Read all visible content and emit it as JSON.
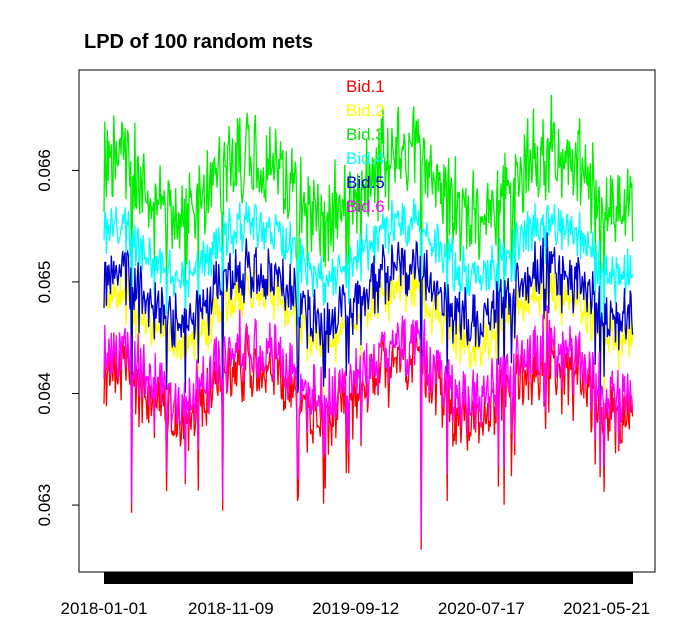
{
  "chart_data": {
    "type": "line",
    "title": "LPD of  100  random nets",
    "xlabel": "",
    "ylabel": "",
    "x_tick_labels": [
      "2018-01-01",
      "2018-11-09",
      "2019-09-12",
      "2020-07-17",
      "2021-05-21"
    ],
    "x_range": [
      "2018-01-01",
      "2021-07-25"
    ],
    "y_ticks": [
      "0.063",
      "0.064",
      "0.065",
      "0.066"
    ],
    "ylim": [
      0.0624,
      0.0669
    ],
    "legend_position": "top-center",
    "grid": false,
    "series": [
      {
        "name": "Bid.1",
        "color": "#ff0000",
        "base": 0.06405
      },
      {
        "name": "Bid.2",
        "color": "#ffff00",
        "base": 0.0647
      },
      {
        "name": "Bid.3",
        "color": "#00ee00",
        "base": 0.0659
      },
      {
        "name": "Bid.4",
        "color": "#00ffff",
        "base": 0.0653
      },
      {
        "name": "Bid.5",
        "color": "#0000cd",
        "base": 0.0649
      },
      {
        "name": "Bid.6",
        "color": "#ff00ff",
        "base": 0.0642
      }
    ],
    "notable_values": [
      {
        "x": "2018-03-10",
        "description": "low dip",
        "value": 0.06293
      },
      {
        "x": "2018-10-20",
        "description": "low dip",
        "value": 0.06295
      },
      {
        "x": "2020-02-20",
        "description": "minimum",
        "value": 0.0626
      },
      {
        "x": "2021-05-05",
        "description": "low dip",
        "value": 0.06325
      }
    ]
  }
}
